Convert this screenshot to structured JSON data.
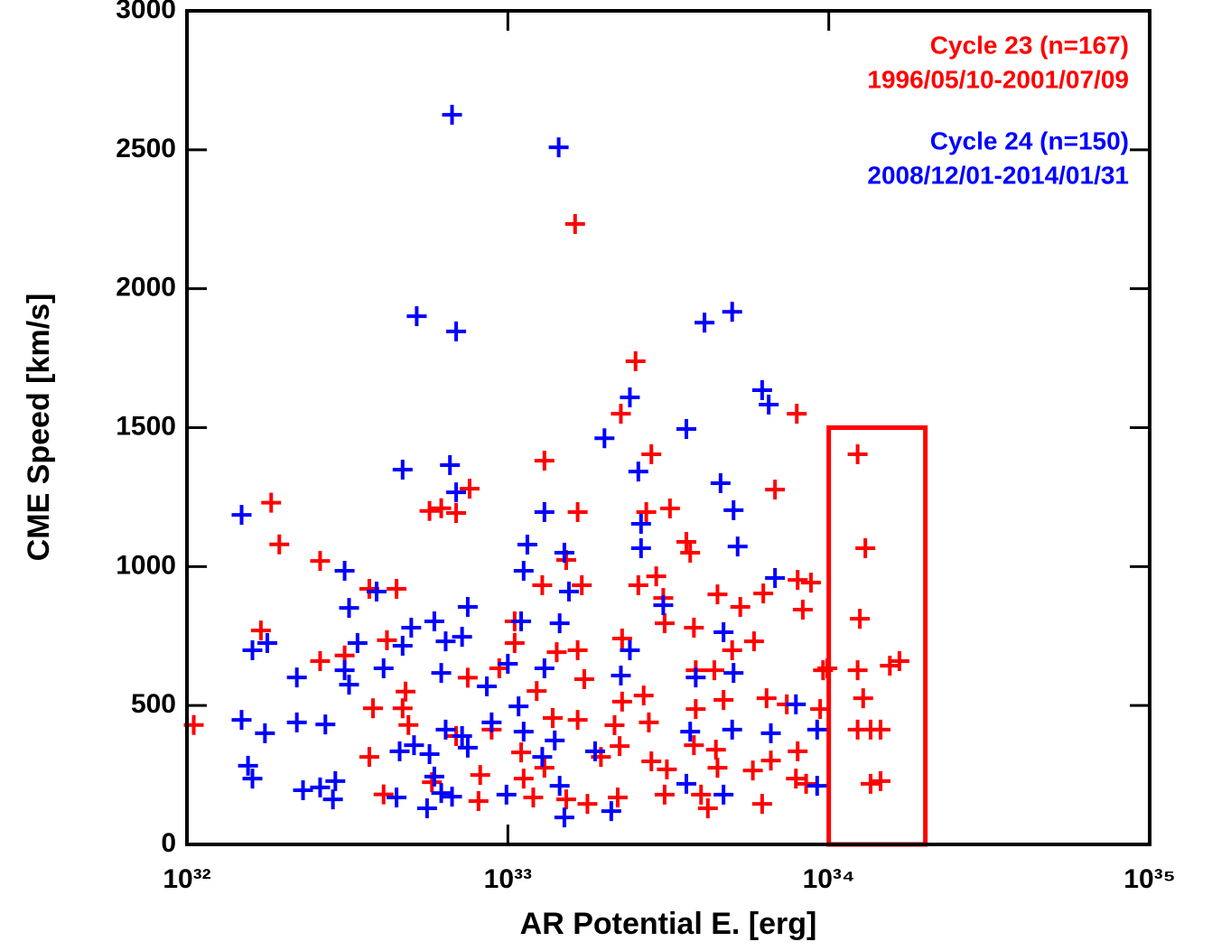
{
  "chart_data": {
    "type": "scatter",
    "xlabel": "AR Potential E. [erg]",
    "ylabel": "CME Speed [km/s]",
    "xscale": "log",
    "xlim": [
      1e+32,
      1e+35
    ],
    "ylim": [
      0,
      3000
    ],
    "xticks": [
      {
        "value": 1e+32,
        "label": "10³²"
      },
      {
        "value": 1e+33,
        "label": "10³³"
      },
      {
        "value": 1e+34,
        "label": "10³⁴"
      },
      {
        "value": 1e+35,
        "label": "10³⁵"
      }
    ],
    "yticks": [
      0,
      500,
      1000,
      1500,
      2000,
      2500,
      3000
    ],
    "highlight": {
      "color": "#ff0000",
      "xlim": [
        1e+34,
        2e+34
      ],
      "ylim": [
        0,
        1500
      ]
    },
    "series": [
      {
        "name": "Cycle 23 (n=167)",
        "period": "1996/05/10-2001/07/09",
        "color": "#ff0000",
        "x": [
          1.05e+32,
          1.83e+32,
          1.94e+32,
          1.7e+32,
          2.6e+32,
          2.6e+32,
          3.1e+32,
          3.7e+32,
          4.5e+32,
          4.2e+32,
          3.8e+32,
          3.7e+32,
          4.1e+32,
          4.7e+32,
          4.8e+32,
          4.9e+32,
          5.8e+32,
          5.7e+32,
          6.2e+32,
          6.9e+32,
          7.6e+32,
          7.5e+32,
          6.9e+32,
          8.2e+32,
          8.1e+32,
          8.9e+32,
          9.4e+32,
          1.05e+33,
          1.05e+33,
          1.12e+33,
          1.1e+33,
          1.23e+33,
          1.2e+33,
          1.28e+33,
          1.3e+33,
          1.38e+33,
          1.3e+33,
          1.42e+33,
          1.52e+33,
          1.65e+33,
          1.62e+33,
          1.7e+33,
          1.65e+33,
          1.73e+33,
          1.65e+33,
          1.77e+33,
          1.52e+33,
          1.95e+33,
          2.15e+33,
          2.23e+33,
          2.25e+33,
          2.5e+33,
          2.27e+33,
          2.27e+33,
          2.2e+33,
          2.55e+33,
          2.7e+33,
          2.8e+33,
          2.65e+33,
          2.75e+33,
          2.8e+33,
          2.9e+33,
          3.05e+33,
          3.08e+33,
          3.2e+33,
          3.08e+33,
          3.13e+33,
          3.6e+33,
          3.7e+33,
          3.8e+33,
          3.85e+33,
          3.85e+33,
          3.8e+33,
          4e+33,
          4.4e+33,
          4.5e+33,
          4.45e+33,
          4.5e+33,
          4.2e+33,
          4.7e+33,
          5e+33,
          5.3e+33,
          5.8e+33,
          5.85e+33,
          6.25e+33,
          6.2e+33,
          6.4e+33,
          6.6e+33,
          6.8e+33,
          7.4e+33,
          7.95e+33,
          8e+33,
          8.3e+33,
          8e+33,
          7.9e+33,
          8.5e+33,
          8.8e+33,
          9.4e+33,
          9.6e+33,
          1.23e+34,
          1.3e+34,
          1.25e+34,
          1.23e+34,
          1.28e+34,
          1.23e+34,
          1.35e+34,
          1.45e+34,
          1.35e+34,
          1.45e+34,
          1.55e+34,
          1.66e+34,
          9.9e+33
        ],
        "values": [
          430,
          1230,
          1080,
          770,
          1020,
          660,
          680,
          920,
          920,
          735,
          490,
          315,
          180,
          490,
          550,
          430,
          224,
          1200,
          1210,
          1193,
          1280,
          600,
          390,
          250,
          156,
          413,
          634,
          803,
          725,
          237,
          331,
          552,
          169,
          933,
          1381,
          455,
          276,
          692,
          1024,
          1196,
          2233,
          933,
          699,
          595,
          448,
          146,
          162,
          315,
          429,
          354,
          1550,
          1739,
          741,
          514,
          169,
          933,
          1196,
          1404,
          536,
          439,
          299,
          965,
          887,
          796,
          1209,
          179,
          270,
          1089,
          1050,
          780,
          627,
          487,
          357,
          179,
          627,
          900,
          341,
          276,
          130,
          520,
          699,
          855,
          266,
          731,
          903,
          146,
          526,
          302,
          1277,
          504,
          1550,
          952,
          845,
          335,
          237,
          218,
          942,
          487,
          627,
          1404,
          1066,
          812,
          627,
          526,
          413,
          413,
          413,
          218,
          228,
          643,
          660,
          634
        ]
      },
      {
        "name": "Cycle 24 (n=150)",
        "period": "2008/12/01-2014/01/31",
        "color": "#0000ff",
        "x": [
          6.7e+32,
          1.44e+33,
          5.2e+32,
          6.9e+32,
          4.7e+32,
          6.6e+32,
          6.9e+32,
          1.48e+32,
          1.6e+32,
          1.78e+32,
          1.48e+32,
          1.55e+32,
          1.6e+32,
          1.75e+32,
          2.2e+32,
          2.2e+32,
          2.7e+32,
          2.3e+32,
          2.6e+32,
          2.9e+32,
          2.85e+32,
          3.1e+32,
          3.2e+32,
          3.4e+32,
          3.1e+32,
          3.2e+32,
          3.9e+32,
          4.1e+32,
          4.7e+32,
          5e+32,
          5.9e+32,
          6.4e+32,
          7.2e+32,
          7.5e+32,
          6.2e+32,
          4.6e+32,
          5.1e+32,
          5.7e+32,
          5.6e+32,
          5.9e+32,
          6.2e+32,
          6.7e+32,
          6.4e+32,
          7.2e+32,
          7.5e+32,
          4.5e+32,
          8.6e+32,
          8.9e+32,
          1e+33,
          1.1e+33,
          1.12e+33,
          1.15e+33,
          1.08e+33,
          1.12e+33,
          9.9e+32,
          1.3e+33,
          1.3e+33,
          1.45e+33,
          1.5e+33,
          1.55e+33,
          1.4e+33,
          1.45e+33,
          1.5e+33,
          1.28e+33,
          1.87e+33,
          2e+33,
          2.1e+33,
          2.25e+33,
          2.4e+33,
          2.55e+33,
          2.6e+33,
          2.6e+33,
          2.4e+33,
          3.05e+33,
          3.6e+33,
          3.85e+33,
          3.7e+33,
          3.6e+33,
          4.1e+33,
          4.6e+33,
          4.7e+33,
          5e+33,
          5.05e+33,
          5.2e+33,
          5.05e+33,
          5e+33,
          4.7e+33,
          6.2e+33,
          6.5e+33,
          6.8e+33,
          6.6e+33,
          7.9e+33,
          9.2e+33,
          9.2e+33
        ],
        "values": [
          2626,
          2509,
          1901,
          1846,
          1349,
          1365,
          1267,
          1186,
          699,
          725,
          448,
          283,
          237,
          400,
          601,
          439,
          432,
          195,
          205,
          228,
          162,
          985,
          851,
          725,
          627,
          575,
          910,
          634,
          715,
          780,
          803,
          731,
          747,
          855,
          617,
          335,
          357,
          325,
          130,
          244,
          185,
          172,
          413,
          390,
          348,
          169,
          569,
          439,
          650,
          803,
          985,
          1079,
          497,
          406,
          179,
          1196,
          634,
          796,
          1050,
          910,
          374,
          211,
          97,
          315,
          335,
          1462,
          120,
          608,
          1609,
          1342,
          1154,
          1066,
          699,
          861,
          1495,
          601,
          406,
          218,
          1878,
          1300,
          764,
          1917,
          1203,
          1072,
          617,
          413,
          179,
          1635,
          1583,
          959,
          400,
          504,
          413,
          211
        ]
      }
    ]
  }
}
